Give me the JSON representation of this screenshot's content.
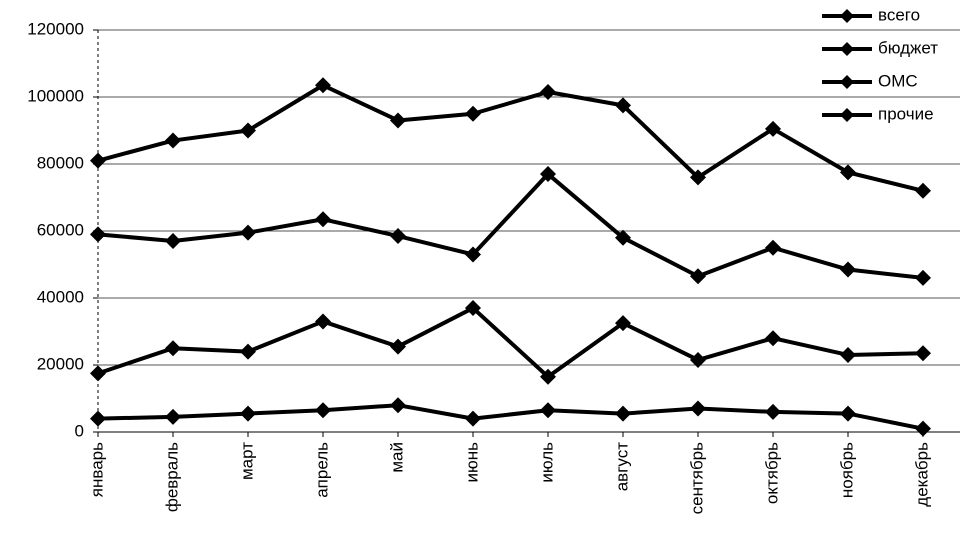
{
  "chart_data": {
    "type": "line",
    "categories": [
      "январь",
      "февраль",
      "март",
      "апрель",
      "май",
      "июнь",
      "июль",
      "август",
      "сентябрь",
      "октябрь",
      "ноябрь",
      "декабрь"
    ],
    "series": [
      {
        "name": "всего",
        "color": "#000000",
        "values": [
          81000,
          87000,
          90000,
          103500,
          93000,
          95000,
          101500,
          97500,
          76000,
          90500,
          77500,
          72000
        ]
      },
      {
        "name": "бюджет",
        "color": "#000000",
        "values": [
          59000,
          57000,
          59500,
          63500,
          58500,
          53000,
          77000,
          58000,
          46500,
          55000,
          48500,
          46000
        ]
      },
      {
        "name": "ОМС",
        "color": "#000000",
        "values": [
          17500,
          25000,
          24000,
          33000,
          25500,
          37000,
          16500,
          32500,
          21500,
          28000,
          23000,
          23500
        ]
      },
      {
        "name": "прочие",
        "color": "#000000",
        "values": [
          4000,
          4500,
          5500,
          6500,
          8000,
          4000,
          6500,
          5500,
          7000,
          6000,
          5500,
          1000
        ]
      }
    ],
    "ylim": [
      0,
      120000
    ],
    "yticks": [
      0,
      20000,
      40000,
      60000,
      80000,
      100000,
      120000
    ],
    "grid": true,
    "legend": "top-right"
  }
}
